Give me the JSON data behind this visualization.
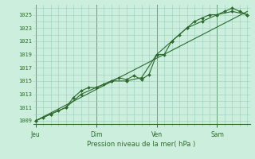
{
  "bg_color": "#cceedd",
  "grid_color": "#99ccbb",
  "line_color": "#2d6a2d",
  "marker_color": "#2d6a2d",
  "ylim": [
    1008.5,
    1026.5
  ],
  "yticks": [
    1009,
    1011,
    1013,
    1015,
    1017,
    1019,
    1021,
    1023,
    1025
  ],
  "xlabel": "Pression niveau de la mer( hPa )",
  "day_labels": [
    "Jeu",
    "Dim",
    "Ven",
    "Sam"
  ],
  "day_positions": [
    0,
    48,
    96,
    144
  ],
  "xlim": [
    -2,
    170
  ],
  "series1_x": [
    0,
    6,
    12,
    18,
    24,
    30,
    36,
    42,
    48,
    54,
    60,
    66,
    72,
    78,
    84,
    90,
    96,
    102,
    108,
    114,
    120,
    126,
    132,
    138,
    144,
    150,
    156,
    162,
    168
  ],
  "series1_y": [
    1009,
    1009.5,
    1010,
    1010.5,
    1011,
    1012.5,
    1013.5,
    1014,
    1014,
    1014.5,
    1015,
    1015.5,
    1015.2,
    1015.8,
    1015.2,
    1016,
    1019,
    1019,
    1021,
    1022,
    1023,
    1024,
    1024.5,
    1025,
    1025,
    1025.5,
    1026,
    1025.5,
    1025
  ],
  "series2_x": [
    0,
    12,
    24,
    36,
    48,
    60,
    72,
    84,
    96,
    108,
    120,
    132,
    144,
    156,
    168
  ],
  "series2_y": [
    1009,
    1010,
    1011,
    1013,
    1014,
    1015,
    1015,
    1015.5,
    1019,
    1021,
    1023,
    1024,
    1025,
    1025.5,
    1025
  ],
  "trend_x": [
    0,
    168
  ],
  "trend_y": [
    1009,
    1025.5
  ],
  "figsize": [
    3.2,
    2.0
  ],
  "dpi": 100
}
